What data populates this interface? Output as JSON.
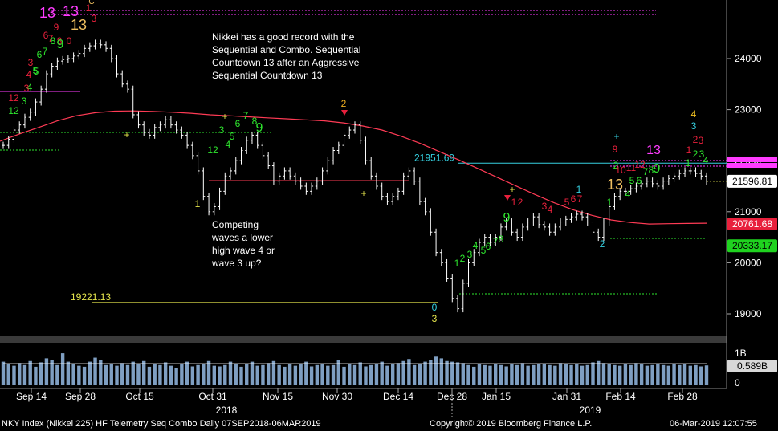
{
  "chart_data": {
    "type": "candlestick",
    "title": "",
    "y_axis": {
      "ticks": [
        19000,
        20000,
        21000,
        22000,
        23000,
        24000
      ],
      "side": "right",
      "ylim": [
        18450,
        24900
      ]
    },
    "x_axis": {
      "ticks": [
        "Sep 14",
        "Sep 28",
        "Oct 15",
        "Oct 31",
        "Nov 15",
        "Nov 30",
        "Dec 14",
        "Dec 28",
        "Jan 15",
        "Jan 31",
        "Feb 14",
        "Feb 28"
      ],
      "years": [
        "2018",
        "2019"
      ]
    },
    "price_series": [
      22300,
      22420,
      22600,
      22700,
      22850,
      22950,
      23150,
      23400,
      23700,
      23850,
      23950,
      23980,
      24000,
      24050,
      24100,
      24200,
      24250,
      24300,
      24270,
      24200,
      24000,
      23700,
      23500,
      23400,
      22900,
      22700,
      22550,
      22500,
      22650,
      22700,
      22800,
      22700,
      22600,
      22500,
      22300,
      22100,
      21800,
      21300,
      21000,
      21100,
      21400,
      21700,
      21800,
      22000,
      22200,
      22400,
      22500,
      22300,
      22100,
      21900,
      21600,
      21700,
      21800,
      21700,
      21600,
      21500,
      21400,
      21500,
      21600,
      21800,
      22000,
      22200,
      22300,
      22500,
      22600,
      22700,
      22400,
      22000,
      21700,
      21500,
      21300,
      21200,
      21300,
      21400,
      21700,
      21800,
      21600,
      21200,
      21000,
      20600,
      20200,
      20000,
      19700,
      19300,
      19100,
      19600,
      20000,
      20200,
      20400,
      20500,
      20400,
      20500,
      20700,
      20800,
      20600,
      20500,
      20700,
      20800,
      20900,
      20750,
      20700,
      20600,
      20700,
      20800,
      20850,
      20900,
      20950,
      20900,
      20800,
      20600,
      20500,
      20800,
      21100,
      21300,
      21400,
      21400,
      21450,
      21500,
      21550,
      21600,
      21550,
      21500,
      21600,
      21650,
      21700,
      21750,
      21800,
      21800,
      21750,
      21700,
      21600
    ],
    "moving_average": {
      "color": "#ff3b55",
      "values": [
        22380,
        22520,
        22650,
        22780,
        22880,
        22940,
        22970,
        22975,
        22965,
        22950,
        22930,
        22900,
        22880,
        22860,
        22840,
        22820,
        22800,
        22780,
        22740,
        22680,
        22600,
        22480,
        22340,
        22180,
        22020,
        21850,
        21680,
        21510,
        21340,
        21180,
        21040,
        20930,
        20840,
        20790,
        20760,
        20765,
        20770,
        20775
      ]
    },
    "volume": {
      "axis_ticks": [
        "1B",
        "0"
      ],
      "last_label": "0.589B",
      "values": [
        0.7,
        0.62,
        0.58,
        0.66,
        0.6,
        0.72,
        0.55,
        0.68,
        0.8,
        0.76,
        0.6,
        0.95,
        0.7,
        0.62,
        0.58,
        0.55,
        0.7,
        0.82,
        0.75,
        0.6,
        0.64,
        0.58,
        0.66,
        0.6,
        0.7,
        0.62,
        0.72,
        0.55,
        0.63,
        0.6,
        0.68,
        0.58,
        0.5,
        0.62,
        0.7,
        0.56,
        0.6,
        0.64,
        0.72,
        0.58,
        0.56,
        0.6,
        0.7,
        0.62,
        0.55,
        0.64,
        0.7,
        0.58,
        0.6,
        0.66,
        0.72,
        0.6,
        0.55,
        0.64,
        0.58,
        0.62,
        0.7,
        0.56,
        0.6,
        0.64,
        0.58,
        0.6,
        0.74,
        0.55,
        0.62,
        0.6,
        0.68,
        0.56,
        0.6,
        0.64,
        0.7,
        0.58,
        0.62,
        0.66,
        0.72,
        0.78,
        0.6,
        0.64,
        0.7,
        0.75,
        0.85,
        0.8,
        0.72,
        0.7,
        0.68,
        0.66,
        0.6,
        0.55,
        0.62,
        0.6,
        0.58,
        0.64,
        0.6,
        0.56,
        0.62,
        0.6,
        0.66,
        0.58,
        0.6,
        0.64,
        0.62,
        0.6,
        0.58,
        0.66,
        0.62,
        0.6,
        0.64,
        0.58,
        0.6,
        0.68,
        0.72,
        0.66,
        0.62,
        0.6,
        0.58,
        0.62,
        0.6,
        0.66,
        0.64,
        0.58,
        0.6,
        0.62,
        0.6,
        0.58,
        0.64,
        0.6,
        0.62,
        0.58,
        0.6,
        0.56,
        0.59
      ]
    },
    "horizontal_levels": [
      {
        "label": "19221.13",
        "value": 19221.13,
        "color": "#e6e64d"
      },
      {
        "label": "21951.69",
        "value": 21951.69,
        "color": "#35d0e0"
      }
    ],
    "price_tags": [
      {
        "label": "21596.81",
        "value": 21596.81,
        "bg": "#ffffff",
        "fg": "#000000"
      },
      {
        "label": "20761.68",
        "value": 20761.68,
        "bg": "#e8203c",
        "fg": "#ffffff"
      },
      {
        "label": "20333.17",
        "value": 20333.17,
        "bg": "#1fd21f",
        "fg": "#000000"
      }
    ],
    "annotations": [
      {
        "text": "Nikkei has a good record with the",
        "line": 1
      },
      {
        "text": "Sequential and Combo.  Sequential",
        "line": 2
      },
      {
        "text": "Countdown 13 after an Aggressive",
        "line": 3
      },
      {
        "text": "Sequential Countdown 13",
        "line": 4
      },
      {
        "text": "Competing",
        "line": 5
      },
      {
        "text": "waves a lower",
        "line": 6
      },
      {
        "text": "high wave 4 or",
        "line": 7
      },
      {
        "text": "wave 3 up?",
        "line": 8
      }
    ],
    "markers": [
      {
        "text": "13",
        "color": "#ff3cff",
        "size": 18
      },
      {
        "text": "13",
        "color": "#ff3cff",
        "size": 18
      },
      {
        "text": "13",
        "color": "#f0c060",
        "size": 18
      },
      {
        "text": "1",
        "color": "#e8203c",
        "size": 12
      },
      {
        "text": "C",
        "color": "#f0c060",
        "size": 10
      },
      {
        "text": "3",
        "color": "#e8203c",
        "size": 12
      },
      {
        "text": "9",
        "color": "#e8203c",
        "size": 12
      },
      {
        "text": "8",
        "color": "#e8203c",
        "size": 12
      },
      {
        "text": "6",
        "color": "#e8203c",
        "size": 12
      },
      {
        "text": "7",
        "color": "#e8203c",
        "size": 12
      },
      {
        "text": "0",
        "color": "#e8203c",
        "size": 12
      },
      {
        "text": "8",
        "color": "#2ee62e",
        "size": 12
      },
      {
        "text": "9",
        "color": "#2ee62e",
        "size": 16
      },
      {
        "text": "6",
        "color": "#2ee62e",
        "size": 12
      },
      {
        "text": "7",
        "color": "#2ee62e",
        "size": 12
      },
      {
        "text": "5",
        "color": "#2ee62e",
        "size": 12
      },
      {
        "text": "3",
        "color": "#e8203c",
        "size": 12
      },
      {
        "text": "4",
        "color": "#e8203c",
        "size": 12
      },
      {
        "text": "5",
        "color": "#2ee62e",
        "size": 12
      },
      {
        "text": "4",
        "color": "#2ee62e",
        "size": 12
      },
      {
        "text": "3",
        "color": "#e8203c",
        "size": 12
      },
      {
        "text": "12",
        "color": "#e8203c",
        "size": 12
      },
      {
        "text": "3",
        "color": "#2ee62e",
        "size": 12
      },
      {
        "text": "12",
        "color": "#2ee62e",
        "size": 12
      },
      {
        "text": "1",
        "color": "#e6e64d",
        "size": 12
      },
      {
        "text": "+",
        "color": "#e6e64d",
        "size": 12
      },
      {
        "text": "+",
        "color": "#e6e64d",
        "size": 12
      },
      {
        "text": "3",
        "color": "#2ee62e",
        "size": 12
      },
      {
        "text": "7",
        "color": "#2ee62e",
        "size": 12
      },
      {
        "text": "8",
        "color": "#2ee62e",
        "size": 12
      },
      {
        "text": "9",
        "color": "#2ee62e",
        "size": 16
      },
      {
        "text": "6",
        "color": "#2ee62e",
        "size": 12
      },
      {
        "text": "5",
        "color": "#2ee62e",
        "size": 12
      },
      {
        "text": "4",
        "color": "#2ee62e",
        "size": 12
      },
      {
        "text": "12",
        "color": "#2ee62e",
        "size": 12
      },
      {
        "text": "2",
        "color": "#f0b020",
        "size": 12
      },
      {
        "text": "+",
        "color": "#e6e64d",
        "size": 12
      },
      {
        "text": "1",
        "color": "#2ee62e",
        "size": 12
      },
      {
        "text": "0",
        "color": "#35d0e0",
        "size": 12
      },
      {
        "text": "3",
        "color": "#e6e64d",
        "size": 12
      },
      {
        "text": "2",
        "color": "#2ee62e",
        "size": 12
      },
      {
        "text": "3",
        "color": "#2ee62e",
        "size": 12
      },
      {
        "text": "4",
        "color": "#2ee62e",
        "size": 12
      },
      {
        "text": "5",
        "color": "#2ee62e",
        "size": 12
      },
      {
        "text": "6",
        "color": "#2ee62e",
        "size": 12
      },
      {
        "text": "7",
        "color": "#2ee62e",
        "size": 12
      },
      {
        "text": "8",
        "color": "#2ee62e",
        "size": 12
      },
      {
        "text": "9",
        "color": "#2ee62e",
        "size": 16
      },
      {
        "text": "+",
        "color": "#e6e64d",
        "size": 12
      },
      {
        "text": "1",
        "color": "#e8203c",
        "size": 12
      },
      {
        "text": "2",
        "color": "#e8203c",
        "size": 12
      },
      {
        "text": "3",
        "color": "#e8203c",
        "size": 12
      },
      {
        "text": "4",
        "color": "#e8203c",
        "size": 12
      },
      {
        "text": "5",
        "color": "#e8203c",
        "size": 12
      },
      {
        "text": "6",
        "color": "#e8203c",
        "size": 12
      },
      {
        "text": "7",
        "color": "#e8203c",
        "size": 12
      },
      {
        "text": "1",
        "color": "#35d0e0",
        "size": 12
      },
      {
        "text": "2",
        "color": "#35d0e0",
        "size": 12
      },
      {
        "text": "1",
        "color": "#2ee62e",
        "size": 12
      },
      {
        "text": "13",
        "color": "#f0c060",
        "size": 18
      },
      {
        "text": "9",
        "color": "#e8203c",
        "size": 12
      },
      {
        "text": "+",
        "color": "#35d0e0",
        "size": 12
      },
      {
        "text": "2",
        "color": "#2ee62e",
        "size": 12
      },
      {
        "text": "10",
        "color": "#e8203c",
        "size": 12
      },
      {
        "text": "11",
        "color": "#e8203c",
        "size": 12
      },
      {
        "text": "12",
        "color": "#e8203c",
        "size": 12
      },
      {
        "text": "13",
        "color": "#ff3cff",
        "size": 16
      },
      {
        "text": "4",
        "color": "#2ee62e",
        "size": 12
      },
      {
        "text": "5",
        "color": "#2ee62e",
        "size": 12
      },
      {
        "text": "6",
        "color": "#2ee62e",
        "size": 12
      },
      {
        "text": "7",
        "color": "#2ee62e",
        "size": 12
      },
      {
        "text": "8",
        "color": "#2ee62e",
        "size": 12
      },
      {
        "text": "9",
        "color": "#2ee62e",
        "size": 16
      },
      {
        "text": "4",
        "color": "#f0c020",
        "size": 12
      },
      {
        "text": "3",
        "color": "#35d0e0",
        "size": 12
      },
      {
        "text": "2",
        "color": "#e8203c",
        "size": 12
      },
      {
        "text": "3",
        "color": "#e8203c",
        "size": 12
      },
      {
        "text": "1",
        "color": "#e8203c",
        "size": 12
      },
      {
        "text": "2",
        "color": "#2ee62e",
        "size": 12
      },
      {
        "text": "3",
        "color": "#2ee62e",
        "size": 12
      },
      {
        "text": "4",
        "color": "#2ee62e",
        "size": 12
      },
      {
        "text": "1",
        "color": "#2ee62e",
        "size": 12
      }
    ]
  },
  "footer": {
    "left": "NKY Index (Nikkei 225) HF Telemetry Seq Combo  Daily 07SEP2018-06MAR2019",
    "center": "Copyright© 2019 Bloomberg Finance L.P.",
    "right": "06-Mar-2019 12:07:55"
  }
}
